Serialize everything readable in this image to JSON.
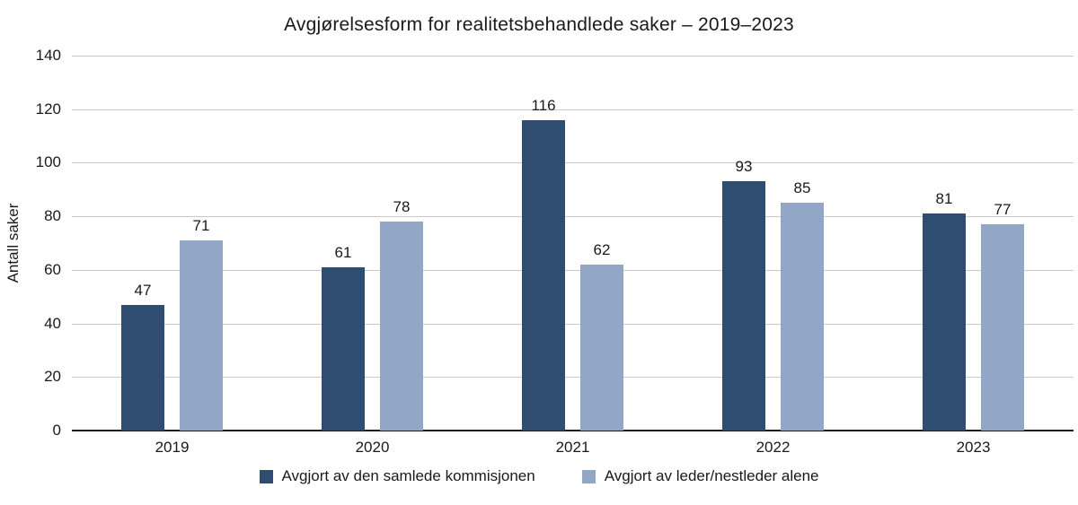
{
  "chart_data": {
    "type": "bar",
    "title": "Avgjørelsesform for realitetsbehandlede saker – 2019–2023",
    "ylabel": "Antall saker",
    "xlabel": "",
    "categories": [
      "2019",
      "2020",
      "2021",
      "2022",
      "2023"
    ],
    "series": [
      {
        "name": "Avgjort av den samlede kommisjonen",
        "color": "#2E4D70",
        "values": [
          47,
          61,
          116,
          93,
          81
        ]
      },
      {
        "name": "Avgjort av leder/nestleder alene",
        "color": "#92A7C6",
        "values": [
          71,
          78,
          62,
          85,
          77
        ]
      }
    ],
    "ylim": [
      0,
      140
    ],
    "yticks": [
      0,
      20,
      40,
      60,
      80,
      100,
      120,
      140
    ],
    "grid": true,
    "legend_position": "bottom",
    "colors": {
      "gridline": "#c9c9c9",
      "axis": "#1a1a1a",
      "text": "#1a1a1a",
      "background": "#ffffff"
    }
  }
}
